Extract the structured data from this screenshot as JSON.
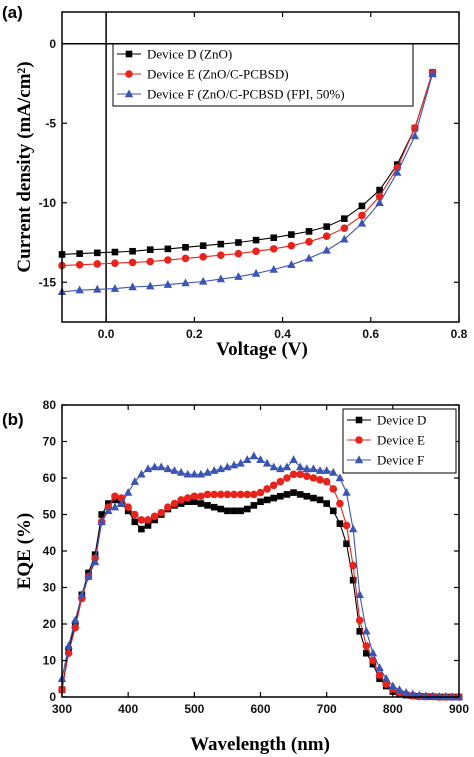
{
  "chart_data": [
    {
      "type": "line",
      "panel_label": "(a)",
      "xlabel": "Voltage (V)",
      "ylabel": "Current density (mA/cm²)",
      "xlim": [
        -0.1,
        0.8
      ],
      "ylim": [
        -17.5,
        2
      ],
      "xticks": [
        0.0,
        0.2,
        0.4,
        0.6,
        0.8
      ],
      "xtick_labels": [
        "0.0",
        "0.2",
        "0.4",
        "0.6",
        "0.8"
      ],
      "yticks": [
        0,
        -5,
        -10,
        -15
      ],
      "ytick_labels": [
        "0",
        "-5",
        "-10",
        "-15"
      ],
      "reference_lines": {
        "x": 0,
        "y": 0
      },
      "legend": "top-left",
      "series": [
        {
          "name": "Device D (ZnO)",
          "color": "#000000",
          "marker": "square",
          "x": [
            -0.1,
            -0.06,
            -0.02,
            0.02,
            0.06,
            0.1,
            0.14,
            0.18,
            0.22,
            0.26,
            0.3,
            0.34,
            0.38,
            0.42,
            0.46,
            0.5,
            0.54,
            0.58,
            0.62,
            0.66,
            0.7,
            0.74
          ],
          "y": [
            -13.25,
            -13.2,
            -13.15,
            -13.1,
            -13.05,
            -12.95,
            -12.9,
            -12.8,
            -12.7,
            -12.6,
            -12.5,
            -12.35,
            -12.2,
            -12.0,
            -11.8,
            -11.5,
            -11.0,
            -10.2,
            -9.2,
            -7.6,
            -5.3,
            -1.8
          ]
        },
        {
          "name": "Device E (ZnO/C-PCBSD)",
          "color": "#e8231c",
          "marker": "circle",
          "x": [
            -0.1,
            -0.06,
            -0.02,
            0.02,
            0.06,
            0.1,
            0.14,
            0.18,
            0.22,
            0.26,
            0.3,
            0.34,
            0.38,
            0.42,
            0.46,
            0.5,
            0.54,
            0.58,
            0.62,
            0.66,
            0.7,
            0.74
          ],
          "y": [
            -13.95,
            -13.9,
            -13.85,
            -13.8,
            -13.75,
            -13.7,
            -13.6,
            -13.5,
            -13.4,
            -13.3,
            -13.2,
            -13.05,
            -12.9,
            -12.7,
            -12.45,
            -12.1,
            -11.6,
            -10.8,
            -9.6,
            -7.8,
            -5.3,
            -1.8
          ]
        },
        {
          "name": "Device F (ZnO/C-PCBSD (FPI, 50%)",
          "color": "#3a55b4",
          "marker": "triangle",
          "x": [
            -0.1,
            -0.06,
            -0.02,
            0.02,
            0.06,
            0.1,
            0.14,
            0.18,
            0.22,
            0.26,
            0.3,
            0.34,
            0.38,
            0.42,
            0.46,
            0.5,
            0.54,
            0.58,
            0.62,
            0.66,
            0.7,
            0.74
          ],
          "y": [
            -15.6,
            -15.5,
            -15.45,
            -15.4,
            -15.3,
            -15.25,
            -15.15,
            -15.05,
            -14.95,
            -14.8,
            -14.65,
            -14.45,
            -14.2,
            -13.9,
            -13.5,
            -13.0,
            -12.3,
            -11.3,
            -10.0,
            -8.1,
            -5.8,
            -1.9
          ]
        }
      ]
    },
    {
      "type": "line",
      "panel_label": "(b)",
      "xlabel": "Wavelength (nm)",
      "ylabel": "EQE (%)",
      "xlim": [
        300,
        900
      ],
      "ylim": [
        0,
        80
      ],
      "xticks": [
        300,
        400,
        500,
        600,
        700,
        800,
        900
      ],
      "xtick_labels": [
        "300",
        "400",
        "500",
        "600",
        "700",
        "800",
        "900"
      ],
      "yticks": [
        0,
        10,
        20,
        30,
        40,
        50,
        60,
        70,
        80
      ],
      "ytick_labels": [
        "0",
        "10",
        "20",
        "30",
        "40",
        "50",
        "60",
        "70",
        "80"
      ],
      "legend": "top-right",
      "series": [
        {
          "name": "Device D",
          "color": "#000000",
          "marker": "square",
          "x": [
            300,
            310,
            320,
            330,
            340,
            350,
            360,
            370,
            380,
            390,
            400,
            410,
            420,
            430,
            440,
            450,
            460,
            470,
            480,
            490,
            500,
            510,
            520,
            530,
            540,
            550,
            560,
            570,
            580,
            590,
            600,
            610,
            620,
            630,
            640,
            650,
            660,
            670,
            680,
            690,
            700,
            710,
            720,
            730,
            740,
            750,
            760,
            770,
            780,
            790,
            800,
            810,
            820,
            830,
            840,
            850,
            860,
            870,
            880,
            890,
            900
          ],
          "y": [
            2,
            13,
            20,
            28,
            34,
            39,
            50,
            53,
            54,
            53,
            51,
            48,
            46,
            47,
            48.5,
            50,
            51.5,
            52.5,
            53,
            53.5,
            53.5,
            53,
            52.5,
            52,
            51.5,
            51,
            51,
            51,
            51.5,
            52.5,
            53.5,
            54,
            54.5,
            55,
            55.5,
            56,
            55.5,
            55,
            54.5,
            54,
            53,
            51,
            47.5,
            42,
            32,
            18,
            12,
            9,
            5,
            3,
            1.5,
            1,
            0.5,
            0.3,
            0.2,
            0.1,
            0.1,
            0,
            0,
            0,
            0
          ]
        },
        {
          "name": "Device E",
          "color": "#e8231c",
          "marker": "circle",
          "x": [
            300,
            310,
            320,
            330,
            340,
            350,
            360,
            370,
            380,
            390,
            400,
            410,
            420,
            430,
            440,
            450,
            460,
            470,
            480,
            490,
            500,
            510,
            520,
            530,
            540,
            550,
            560,
            570,
            580,
            590,
            600,
            610,
            620,
            630,
            640,
            650,
            660,
            670,
            680,
            690,
            700,
            710,
            720,
            730,
            740,
            750,
            760,
            770,
            780,
            790,
            800,
            810,
            820,
            830,
            840,
            850,
            860,
            870,
            880,
            890,
            900
          ],
          "y": [
            2,
            12,
            19,
            27,
            33,
            38,
            48,
            52,
            55,
            54.5,
            52,
            50,
            48.5,
            48.5,
            49.5,
            50.5,
            52,
            53,
            54,
            54.5,
            55,
            55,
            55.5,
            55.5,
            55.5,
            55.5,
            55.5,
            55.5,
            55.5,
            55.5,
            56,
            57,
            58,
            59,
            60,
            61,
            61,
            60.5,
            60,
            59.5,
            59,
            57,
            53,
            47,
            36,
            21,
            14,
            10,
            6,
            3.5,
            2,
            1.2,
            0.7,
            0.4,
            0.2,
            0.1,
            0.1,
            0,
            0,
            0,
            0
          ]
        },
        {
          "name": "Device F",
          "color": "#3a55b4",
          "marker": "triangle",
          "x": [
            300,
            310,
            320,
            330,
            340,
            350,
            360,
            370,
            380,
            390,
            400,
            410,
            420,
            430,
            440,
            450,
            460,
            470,
            480,
            490,
            500,
            510,
            520,
            530,
            540,
            550,
            560,
            570,
            580,
            590,
            600,
            610,
            620,
            630,
            640,
            650,
            660,
            670,
            680,
            690,
            700,
            710,
            720,
            730,
            740,
            750,
            760,
            770,
            780,
            790,
            800,
            810,
            820,
            830,
            840,
            850,
            860,
            870,
            880,
            890,
            900
          ],
          "y": [
            5,
            14,
            21,
            28,
            33,
            37,
            48,
            51,
            52,
            53,
            56,
            59,
            61,
            62.5,
            63,
            63,
            62.5,
            62,
            61.5,
            61,
            61,
            61,
            61.5,
            62,
            62.5,
            63,
            63.5,
            64,
            65,
            66,
            65,
            64,
            63,
            62.5,
            63,
            65,
            63,
            62.5,
            62.5,
            62,
            62,
            61.5,
            60,
            56,
            46,
            28,
            18,
            12,
            8,
            5,
            3,
            2,
            1.2,
            0.8,
            0.5,
            0.3,
            0.2,
            0.1,
            0.1,
            0,
            0
          ]
        }
      ]
    }
  ]
}
